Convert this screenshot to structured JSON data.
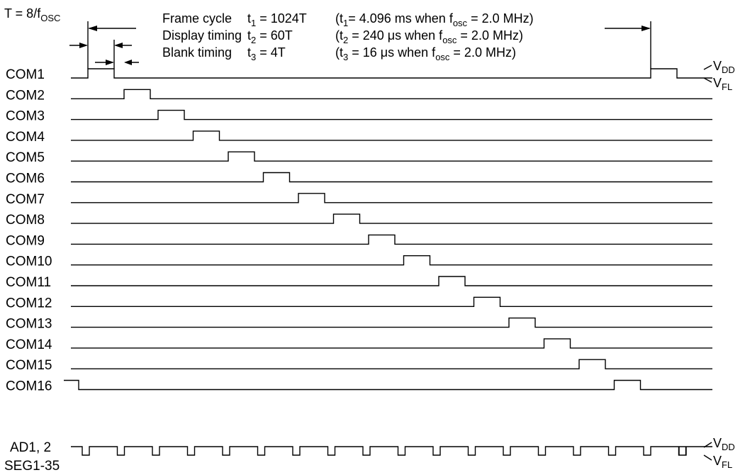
{
  "timing_formula": {
    "lhs": "T = 8/f",
    "lhs_sub": "OSC"
  },
  "parameters": [
    {
      "name": "Frame cycle",
      "sym": "t",
      "sym_sub": "1",
      "value": " = 1024T",
      "note": [
        {
          "t": "(t"
        },
        {
          "t": "1",
          "sub": true
        },
        {
          "t": "= 4.096 ms when f"
        },
        {
          "t": "osc",
          "sub": true
        },
        {
          "t": " = 2.0 MHz)"
        }
      ]
    },
    {
      "name": "Display timing",
      "sym": "t",
      "sym_sub": "2",
      "value": " = 60T",
      "note": [
        {
          "t": "(t"
        },
        {
          "t": "2",
          "sub": true
        },
        {
          "t": " = 240 μs when f"
        },
        {
          "t": "osc",
          "sub": true
        },
        {
          "t": " = 2.0 MHz)"
        }
      ]
    },
    {
      "name": "Blank timing",
      "sym": "t",
      "sym_sub": "3",
      "value": " = 4T",
      "note": [
        {
          "t": "(t"
        },
        {
          "t": "3",
          "sub": true
        },
        {
          "t": " = 16 μs when f"
        },
        {
          "t": "osc",
          "sub": true
        },
        {
          "t": " = 2.0 MHz)"
        }
      ]
    }
  ],
  "level_labels": [
    {
      "main": "V",
      "sub": "DD"
    },
    {
      "main": "V",
      "sub": "FL"
    }
  ],
  "com_signals": [
    "COM1",
    "COM2",
    "COM3",
    "COM4",
    "COM5",
    "COM6",
    "COM7",
    "COM8",
    "COM9",
    "COM10",
    "COM11",
    "COM12",
    "COM13",
    "COM14",
    "COM15",
    "COM16"
  ],
  "seg_signal": {
    "line1": "AD1, 2",
    "line2": "SEG1-35"
  }
}
